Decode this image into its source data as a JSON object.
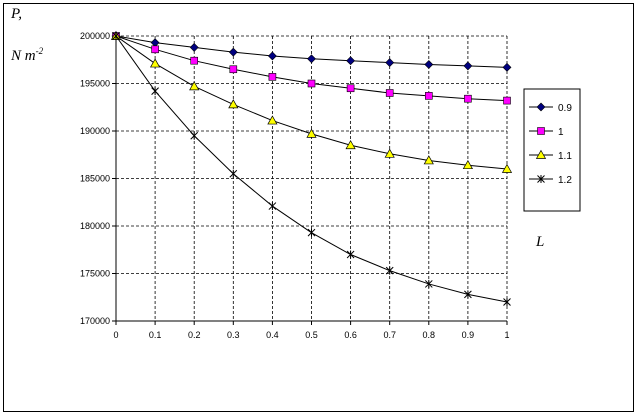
{
  "chart_data": {
    "type": "line",
    "ylabel_line1": "P,",
    "ylabel_line2": "N m",
    "ylabel_sup": "-2",
    "xlabel": "L",
    "x": [
      0,
      0.1,
      0.2,
      0.3,
      0.4,
      0.5,
      0.6,
      0.7,
      0.8,
      0.9,
      1
    ],
    "x_tick_labels": [
      "0",
      "0.1",
      "0.2",
      "0.3",
      "0.4",
      "0.5",
      "0.6",
      "0.7",
      "0.8",
      "0.9",
      "1"
    ],
    "ylim": [
      170000,
      200000
    ],
    "y_ticks": [
      170000,
      175000,
      180000,
      185000,
      190000,
      195000,
      200000
    ],
    "y_tick_labels": [
      "170000",
      "175000",
      "180000",
      "185000",
      "190000",
      "195000",
      "200000"
    ],
    "grid": true,
    "legend_position": "right",
    "series": [
      {
        "name": "0.9",
        "marker": "diamond",
        "color": "#000080",
        "values": [
          200000,
          199300,
          198800,
          198300,
          197900,
          197600,
          197400,
          197200,
          197000,
          196850,
          196700
        ]
      },
      {
        "name": "1",
        "marker": "square",
        "color": "#ff00ff",
        "values": [
          200000,
          198600,
          197400,
          196500,
          195700,
          195000,
          194500,
          194000,
          193700,
          193400,
          193200
        ]
      },
      {
        "name": "1.1",
        "marker": "triangle",
        "color": "#ffff00",
        "values": [
          200000,
          197100,
          194700,
          192800,
          191100,
          189700,
          188500,
          187600,
          186900,
          186400,
          186000
        ]
      },
      {
        "name": "1.2",
        "marker": "star",
        "color": "#000000",
        "values": [
          200000,
          194200,
          189500,
          185500,
          182100,
          179300,
          177000,
          175300,
          173900,
          172800,
          172000
        ]
      }
    ]
  }
}
